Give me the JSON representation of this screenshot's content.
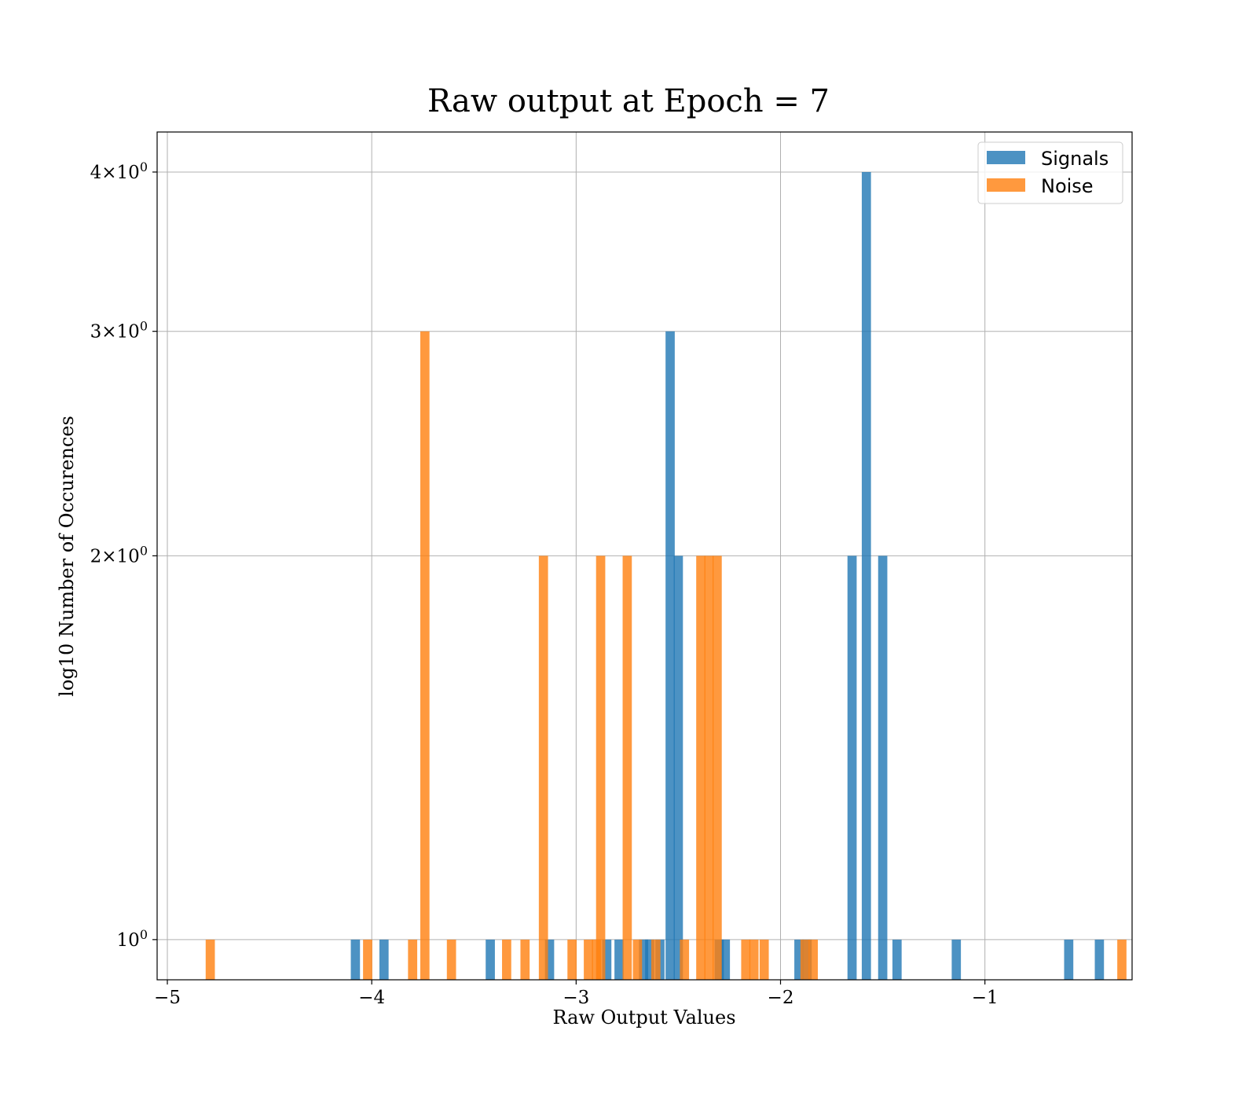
{
  "chart_data": {
    "type": "bar",
    "title": "Raw output at Epoch = 7",
    "xlabel": "Raw Output Values",
    "ylabel": "log10 Number of Occurences",
    "y_scale": "log",
    "xlim": [
      -5.05,
      -0.28
    ],
    "ylim": [
      0.93,
      4.3
    ],
    "xticks": [
      -5,
      -4,
      -3,
      -2,
      -1
    ],
    "xtick_labels": [
      "−5",
      "−4",
      "−3",
      "−2",
      "−1"
    ],
    "yticks": [
      {
        "value": 1,
        "base": "10",
        "exp": "0"
      },
      {
        "value": 2,
        "mult": "2",
        "base": "10",
        "exp": "0"
      },
      {
        "value": 3,
        "mult": "3",
        "base": "10",
        "exp": "0"
      },
      {
        "value": 4,
        "mult": "4",
        "base": "10",
        "exp": "0"
      }
    ],
    "grid": true,
    "legend_position": "top-right",
    "bin_width": 0.045,
    "series": [
      {
        "name": "Signals",
        "color": "#1f77b4",
        "points": [
          {
            "x": -4.08,
            "y": 1
          },
          {
            "x": -3.94,
            "y": 1
          },
          {
            "x": -3.42,
            "y": 1
          },
          {
            "x": -3.13,
            "y": 1
          },
          {
            "x": -2.85,
            "y": 1
          },
          {
            "x": -2.79,
            "y": 1
          },
          {
            "x": -2.67,
            "y": 1
          },
          {
            "x": -2.64,
            "y": 1
          },
          {
            "x": -2.59,
            "y": 1
          },
          {
            "x": -2.54,
            "y": 3
          },
          {
            "x": -2.5,
            "y": 2
          },
          {
            "x": -2.3,
            "y": 1
          },
          {
            "x": -2.27,
            "y": 1
          },
          {
            "x": -1.91,
            "y": 1
          },
          {
            "x": -1.87,
            "y": 1
          },
          {
            "x": -1.65,
            "y": 2
          },
          {
            "x": -1.58,
            "y": 4
          },
          {
            "x": -1.5,
            "y": 2
          },
          {
            "x": -1.43,
            "y": 1
          },
          {
            "x": -1.14,
            "y": 1
          },
          {
            "x": -0.59,
            "y": 1
          },
          {
            "x": -0.44,
            "y": 1
          }
        ]
      },
      {
        "name": "Noise",
        "color": "#ff7f0e",
        "points": [
          {
            "x": -4.79,
            "y": 1
          },
          {
            "x": -4.02,
            "y": 1
          },
          {
            "x": -3.8,
            "y": 1
          },
          {
            "x": -3.74,
            "y": 3
          },
          {
            "x": -3.61,
            "y": 1
          },
          {
            "x": -3.34,
            "y": 1
          },
          {
            "x": -3.25,
            "y": 1
          },
          {
            "x": -3.16,
            "y": 2
          },
          {
            "x": -3.02,
            "y": 1
          },
          {
            "x": -2.94,
            "y": 1
          },
          {
            "x": -2.9,
            "y": 1
          },
          {
            "x": -2.88,
            "y": 2
          },
          {
            "x": -2.75,
            "y": 2
          },
          {
            "x": -2.7,
            "y": 1
          },
          {
            "x": -2.61,
            "y": 1
          },
          {
            "x": -2.47,
            "y": 1
          },
          {
            "x": -2.39,
            "y": 2
          },
          {
            "x": -2.35,
            "y": 2
          },
          {
            "x": -2.31,
            "y": 2
          },
          {
            "x": -2.17,
            "y": 1
          },
          {
            "x": -2.13,
            "y": 1
          },
          {
            "x": -2.08,
            "y": 1
          },
          {
            "x": -1.88,
            "y": 1
          },
          {
            "x": -1.84,
            "y": 1
          },
          {
            "x": -0.33,
            "y": 1
          }
        ]
      }
    ]
  }
}
